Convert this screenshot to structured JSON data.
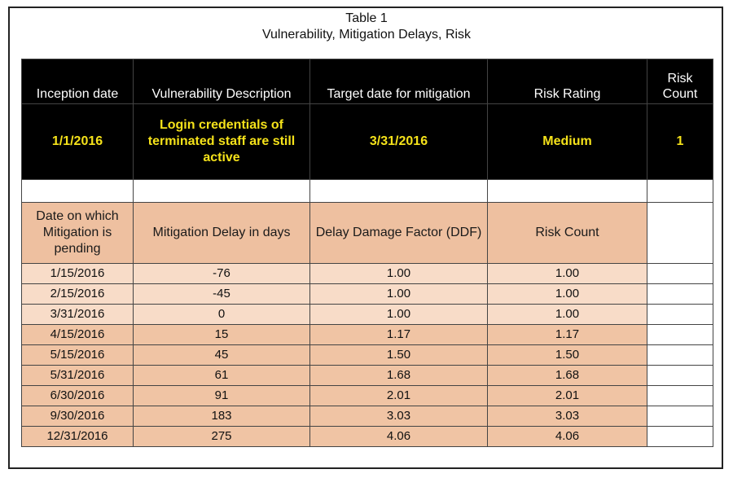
{
  "caption": {
    "line1": "Table 1",
    "line2": "Vulnerability, Mitigation Delays, Risk"
  },
  "header": [
    "Inception date",
    "Vulnerability Description",
    "Target date for mitigation",
    "Risk Rating",
    "Risk Count"
  ],
  "top_row": [
    "1/1/2016",
    "Login credentials of terminated staff are still active",
    "3/31/2016",
    "Medium",
    "1"
  ],
  "sub_header": [
    "Date on which Mitigation is pending",
    "Mitigation Delay in days",
    "Delay Damage Factor (DDF)",
    "Risk Count"
  ],
  "rows": [
    [
      "1/15/2016",
      "-76",
      "1.00",
      "1.00"
    ],
    [
      "2/15/2016",
      "-45",
      "1.00",
      "1.00"
    ],
    [
      "3/31/2016",
      "0",
      "1.00",
      "1.00"
    ],
    [
      "4/15/2016",
      "15",
      "1.17",
      "1.17"
    ],
    [
      "5/15/2016",
      "45",
      "1.50",
      "1.50"
    ],
    [
      "5/31/2016",
      "61",
      "1.68",
      "1.68"
    ],
    [
      "6/30/2016",
      "91",
      "2.01",
      "2.01"
    ],
    [
      "9/30/2016",
      "183",
      "3.03",
      "3.03"
    ],
    [
      "12/31/2016",
      "275",
      "4.06",
      "4.06"
    ]
  ],
  "colors": {
    "header_bg": "#000000",
    "highlight_text": "#f5e21a",
    "subheader_bg": "#eec0a0",
    "row_light": "#f8dcc8",
    "row_dark": "#f0c4a4"
  }
}
